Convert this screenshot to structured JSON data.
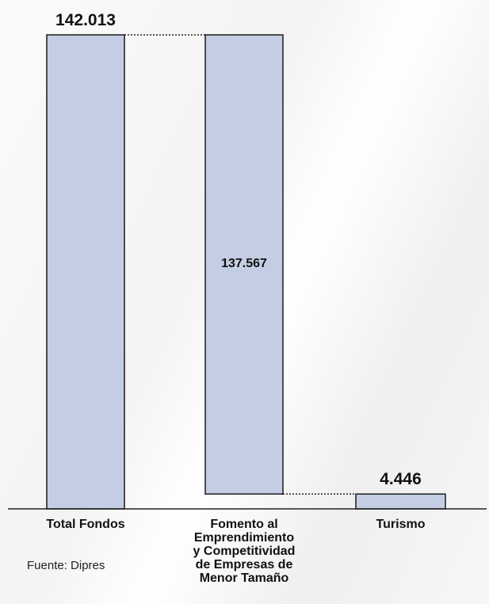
{
  "chart_data": {
    "type": "bar",
    "subtype": "waterfall",
    "categories": [
      "Total Fondos",
      "Fomento al Emprendimiento y Competitividad de Empresas de Menor Tamaño",
      "Turismo"
    ],
    "category_label_lines": [
      [
        "Total Fondos"
      ],
      [
        "Fomento al",
        "Emprendimiento",
        "y Competitividad",
        "de Empresas de",
        "Menor Tamaño"
      ],
      [
        "Turismo"
      ]
    ],
    "values": [
      142013,
      137567,
      4446
    ],
    "bar_base": [
      0,
      4446,
      0
    ],
    "data_labels": [
      "142.013",
      "137.567",
      "4.446"
    ],
    "data_label_position": [
      "outside",
      "inside",
      "outside"
    ],
    "ylim": [
      0,
      142013
    ],
    "grid": false,
    "legend": "none",
    "source": "Fuente: Dipres",
    "colors": {
      "bar_fill": "#c3cee4",
      "bar_stroke": "#1a1a1a",
      "connector": "#222222",
      "text": "#111111"
    }
  }
}
